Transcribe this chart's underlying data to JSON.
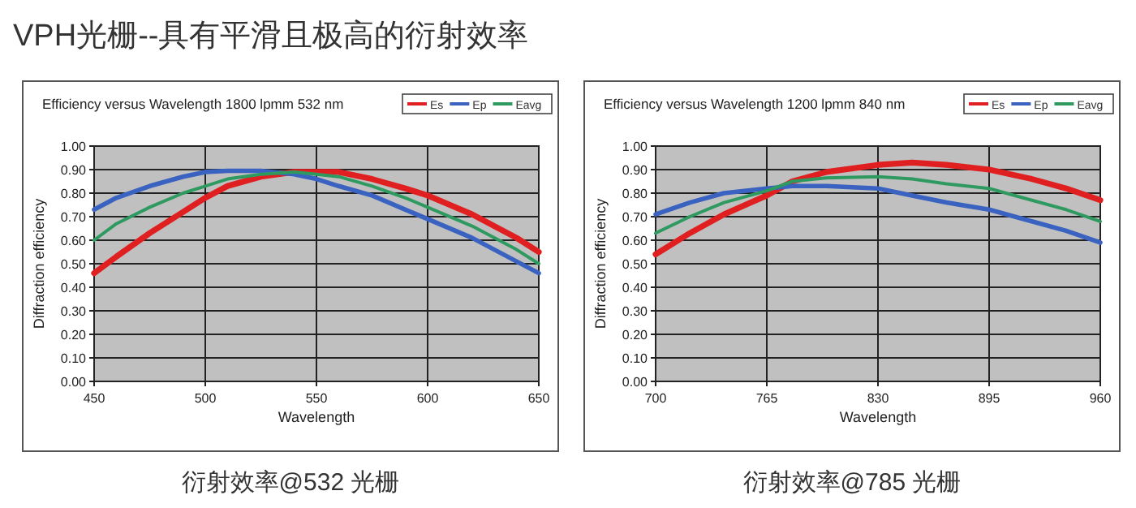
{
  "chart_data": [
    {
      "type": "line",
      "title": "Efficiency versus Wavelength    1800 lpmm    532 nm",
      "xlabel": "Wavelength",
      "ylabel": "Diffraction efficiency",
      "annotations": [
        "VPH光栅--具有平滑且极高的衍射效率",
        "衍射效率@532 光栅"
      ],
      "xlim": [
        450,
        650
      ],
      "xticks": [
        450,
        500,
        550,
        600,
        650
      ],
      "ylim": [
        0,
        1
      ],
      "yticks": [
        {
          "value": 0,
          "label": "0.00"
        },
        {
          "value": 0.1,
          "label": "0.10"
        },
        {
          "value": 0.2,
          "label": "0.20"
        },
        {
          "value": 0.3,
          "label": "0.30"
        },
        {
          "value": 0.4,
          "label": "0.40"
        },
        {
          "value": 0.5,
          "label": "0.50"
        },
        {
          "value": 0.6,
          "label": "0.60"
        },
        {
          "value": 0.7,
          "label": "0.70"
        },
        {
          "value": 0.8,
          "label": "0.80"
        },
        {
          "value": 0.9,
          "label": "0.90"
        },
        {
          "value": 1,
          "label": "1.00"
        }
      ],
      "grid": true,
      "legend": "top right",
      "x": [
        450,
        460,
        475,
        490,
        500,
        510,
        525,
        540,
        550,
        560,
        575,
        590,
        600,
        620,
        640,
        650
      ],
      "series": [
        {
          "name": "Es",
          "color": "#e02020",
          "values": [
            0.46,
            0.53,
            0.63,
            0.72,
            0.78,
            0.83,
            0.87,
            0.89,
            0.89,
            0.89,
            0.86,
            0.82,
            0.79,
            0.71,
            0.61,
            0.55
          ]
        },
        {
          "name": "Ep",
          "color": "#3a62c0",
          "values": [
            0.73,
            0.78,
            0.83,
            0.87,
            0.89,
            0.895,
            0.895,
            0.88,
            0.86,
            0.83,
            0.79,
            0.73,
            0.69,
            0.61,
            0.51,
            0.46
          ]
        },
        {
          "name": "Eavg",
          "color": "#2e9a60",
          "values": [
            0.6,
            0.67,
            0.74,
            0.8,
            0.83,
            0.86,
            0.88,
            0.89,
            0.88,
            0.87,
            0.83,
            0.78,
            0.74,
            0.66,
            0.56,
            0.5
          ]
        }
      ]
    },
    {
      "type": "line",
      "title": "Efficiency versus Wavelength    1200 lpmm    840 nm",
      "xlabel": "Wavelength",
      "ylabel": "Diffraction efficiency",
      "annotations": [
        "衍射效率@785 光栅"
      ],
      "xlim": [
        700,
        960
      ],
      "xticks": [
        700,
        765,
        830,
        895,
        960
      ],
      "ylim": [
        0,
        1
      ],
      "yticks": [
        {
          "value": 0,
          "label": "0.00"
        },
        {
          "value": 0.1,
          "label": "0.10"
        },
        {
          "value": 0.2,
          "label": "0.20"
        },
        {
          "value": 0.3,
          "label": "0.30"
        },
        {
          "value": 0.4,
          "label": "0.40"
        },
        {
          "value": 0.5,
          "label": "0.50"
        },
        {
          "value": 0.6,
          "label": "0.60"
        },
        {
          "value": 0.7,
          "label": "0.70"
        },
        {
          "value": 0.8,
          "label": "0.80"
        },
        {
          "value": 0.9,
          "label": "0.90"
        },
        {
          "value": 1,
          "label": "1.00"
        }
      ],
      "grid": true,
      "legend": "top right",
      "x": [
        700,
        720,
        740,
        765,
        780,
        800,
        830,
        850,
        870,
        895,
        920,
        940,
        960
      ],
      "series": [
        {
          "name": "Es",
          "color": "#e02020",
          "values": [
            0.54,
            0.63,
            0.71,
            0.79,
            0.85,
            0.89,
            0.92,
            0.93,
            0.92,
            0.9,
            0.86,
            0.82,
            0.77
          ]
        },
        {
          "name": "Ep",
          "color": "#3a62c0",
          "values": [
            0.71,
            0.76,
            0.8,
            0.82,
            0.83,
            0.83,
            0.82,
            0.79,
            0.76,
            0.73,
            0.68,
            0.64,
            0.59
          ]
        },
        {
          "name": "Eavg",
          "color": "#2e9a60",
          "values": [
            0.63,
            0.7,
            0.76,
            0.81,
            0.85,
            0.865,
            0.87,
            0.86,
            0.84,
            0.82,
            0.77,
            0.73,
            0.68
          ]
        }
      ]
    }
  ]
}
